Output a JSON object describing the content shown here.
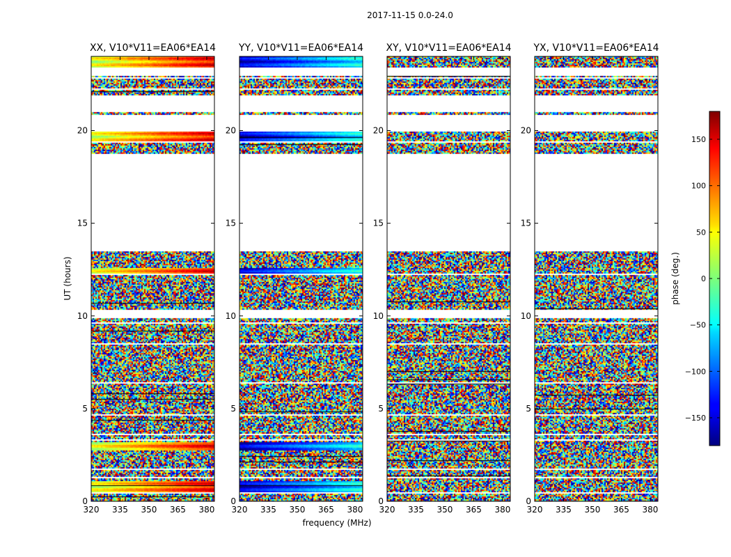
{
  "figure": {
    "suptitle": "2017-11-15 0.0-24.0",
    "xlabel": "frequency (MHz)",
    "ylabel": "UT (hours)"
  },
  "chart_data": {
    "type": "heatmap",
    "panels": [
      {
        "title": "XX, V10*V11=EA06*EA14",
        "pol": "XX"
      },
      {
        "title": "YY, V10*V11=EA06*EA14",
        "pol": "YY"
      },
      {
        "title": "XY, V10*V11=EA06*EA14",
        "pol": "XY"
      },
      {
        "title": "YX, V10*V11=EA06*EA14",
        "pol": "YX"
      }
    ],
    "x_ticks": [
      320,
      335,
      350,
      365,
      380
    ],
    "xlim": [
      320,
      384
    ],
    "y_ticks": [
      0,
      5,
      10,
      15,
      20
    ],
    "ylim": [
      0,
      24
    ],
    "colorbar": {
      "label": "phase (deg.)",
      "ticks": [
        150,
        100,
        50,
        0,
        -50,
        -100,
        -150
      ],
      "tick_labels": [
        "150",
        "100",
        "50",
        "0",
        "−50",
        "−100",
        "−150"
      ],
      "range": [
        -180,
        180
      ],
      "colormap": "jet"
    },
    "flagged_ut_ranges": [
      [
        0.45,
        0.5
      ],
      [
        1.3,
        1.38
      ],
      [
        1.72,
        1.78
      ],
      [
        2.6,
        2.65
      ],
      [
        3.3,
        3.4
      ],
      [
        3.6,
        3.65
      ],
      [
        4.65,
        4.75
      ],
      [
        6.35,
        6.45
      ],
      [
        7.55,
        7.62
      ],
      [
        8.5,
        8.55
      ],
      [
        9.6,
        9.66
      ],
      [
        9.9,
        10.4
      ],
      [
        10.8,
        10.84
      ],
      [
        12.25,
        12.3
      ],
      [
        13.5,
        18.8
      ],
      [
        19.35,
        19.45
      ],
      [
        20.0,
        20.9
      ],
      [
        21.05,
        21.9
      ],
      [
        22.25,
        22.3
      ],
      [
        22.85,
        22.9
      ],
      [
        23.0,
        23.4
      ]
    ]
  }
}
